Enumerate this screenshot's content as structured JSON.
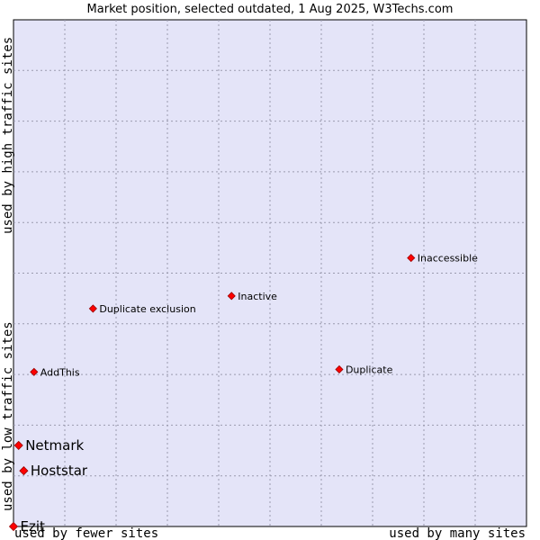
{
  "chart_data": {
    "type": "scatter",
    "title": "Market position, selected outdated, 1 Aug 2025, W3Techs.com",
    "xlabel_left": "used by fewer sites",
    "xlabel_right": "used by many sites",
    "ylabel_low": "used by low traffic sites",
    "ylabel_high": "used by high traffic sites",
    "xlim": [
      0,
      100
    ],
    "ylim": [
      0,
      100
    ],
    "grid": true,
    "points": [
      {
        "name": "Inaccessible",
        "x": 77.5,
        "y": 53,
        "size": "small"
      },
      {
        "name": "Inactive",
        "x": 42.5,
        "y": 45.5,
        "size": "small"
      },
      {
        "name": "Duplicate exclusion",
        "x": 15.5,
        "y": 43,
        "size": "small"
      },
      {
        "name": "AddThis",
        "x": 4,
        "y": 30.5,
        "size": "small"
      },
      {
        "name": "Duplicate",
        "x": 63.5,
        "y": 31,
        "size": "small"
      },
      {
        "name": "Netmark",
        "x": 1,
        "y": 16,
        "size": "large"
      },
      {
        "name": "Hoststar",
        "x": 2,
        "y": 11,
        "size": "large"
      },
      {
        "name": "Ezit",
        "x": 0,
        "y": 0,
        "size": "large"
      }
    ],
    "colors": {
      "plot_bg": "#e4e4f8",
      "grid": "#9a9aae",
      "marker": "#ff0000",
      "marker_stroke": "#990000"
    }
  }
}
